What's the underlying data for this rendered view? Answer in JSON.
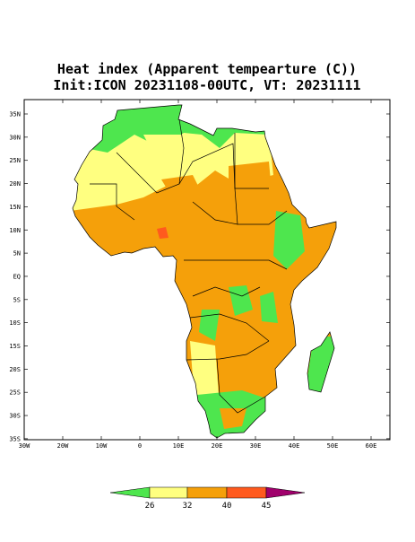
{
  "title": "Heat index (Apparent tempearture (C))",
  "subtitle": "Init:ICON 20231108-00UTC, VT: 20231111",
  "lat_labels": [
    "35N",
    "30N",
    "25N",
    "20N",
    "15N",
    "10N",
    "5N",
    "EQ",
    "5S",
    "10S",
    "15S",
    "20S",
    "25S",
    "30S",
    "35S"
  ],
  "lon_labels": [
    "30W",
    "20W",
    "10W",
    "0",
    "10E",
    "20E",
    "30E",
    "40E",
    "50E",
    "60E"
  ],
  "colorbar": {
    "labels": [
      26,
      32,
      40,
      45
    ]
  }
}
